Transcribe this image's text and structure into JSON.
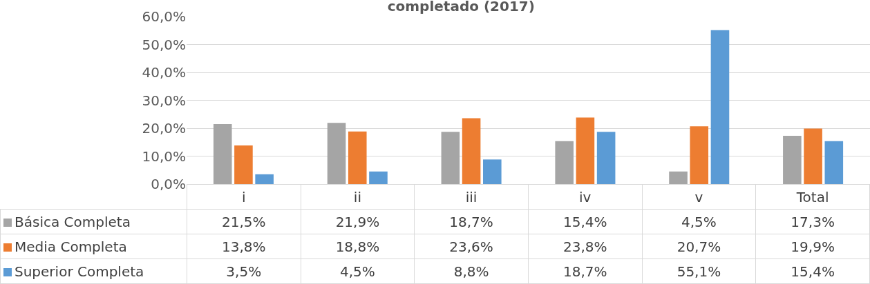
{
  "chart_data": {
    "type": "bar",
    "title": "completado (2017)",
    "categories": [
      "i",
      "ii",
      "iii",
      "iv",
      "v",
      "Total"
    ],
    "series": [
      {
        "name": "Básica Completa",
        "color": "#a5a5a5",
        "values": [
          21.5,
          21.9,
          18.7,
          15.4,
          4.5,
          17.3
        ],
        "value_labels": [
          "21,5%",
          "21,9%",
          "18,7%",
          "15,4%",
          "4,5%",
          "17,3%"
        ]
      },
      {
        "name": "Media Completa",
        "color": "#ed7d31",
        "values": [
          13.8,
          18.8,
          23.6,
          23.8,
          20.7,
          19.9
        ],
        "value_labels": [
          "13,8%",
          "18,8%",
          "23,6%",
          "23,8%",
          "20,7%",
          "19,9%"
        ]
      },
      {
        "name": "Superior Completa",
        "color": "#5b9bd5",
        "values": [
          3.5,
          4.5,
          8.8,
          18.7,
          55.1,
          15.4
        ],
        "value_labels": [
          "3,5%",
          "4,5%",
          "8,8%",
          "18,7%",
          "55,1%",
          "15,4%"
        ]
      }
    ],
    "ylim": [
      0,
      60
    ],
    "yticks": [
      {
        "value": 0,
        "label": "0,0%"
      },
      {
        "value": 10,
        "label": "10,0%"
      },
      {
        "value": 20,
        "label": "20,0%"
      },
      {
        "value": 30,
        "label": "30,0%"
      },
      {
        "value": 40,
        "label": "40,0%"
      },
      {
        "value": 50,
        "label": "50,0%"
      },
      {
        "value": 60,
        "label": "60,0%"
      }
    ],
    "grid": "y",
    "legend": "bottom left"
  }
}
